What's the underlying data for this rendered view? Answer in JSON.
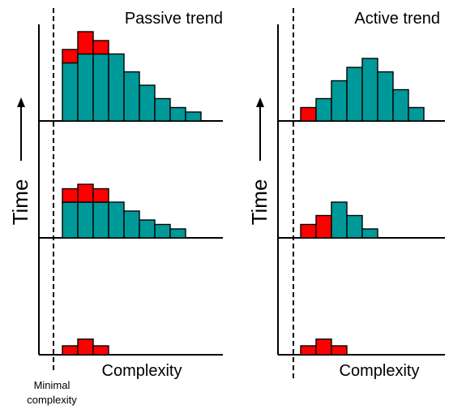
{
  "colors": {
    "teal": "#009999",
    "red": "#ff0000",
    "outline": "#000000"
  },
  "panels": [
    {
      "title": "Passive trend",
      "x_label": "Complexity",
      "y_label": "Time",
      "rows": [
        {
          "teal": [
            6.5,
            7.5,
            7.5,
            7.5,
            5.5,
            4.0,
            2.5,
            1.5,
            1.0
          ],
          "red": [
            1.5,
            2.5,
            1.5,
            0,
            0,
            0,
            0,
            0,
            0
          ]
        },
        {
          "teal": [
            4.0,
            4.0,
            4.0,
            4.0,
            3.0,
            2.0,
            1.5,
            1.0
          ],
          "red": [
            1.5,
            2.0,
            1.5,
            0,
            0,
            0,
            0,
            0
          ]
        },
        {
          "teal": [
            0,
            0,
            0
          ],
          "red": [
            1.0,
            1.75,
            1.0
          ]
        }
      ]
    },
    {
      "title": "Active trend",
      "x_label": "Complexity",
      "y_label": "Time",
      "rows": [
        {
          "teal": [
            0,
            2.5,
            4.5,
            6.0,
            7.0,
            5.5,
            3.5,
            1.5
          ],
          "red": [
            1.5,
            0,
            0,
            0,
            0,
            0,
            0,
            0
          ]
        },
        {
          "teal": [
            0,
            0,
            4.0,
            2.5,
            1.0
          ],
          "red": [
            1.5,
            2.5,
            0,
            0,
            0
          ]
        },
        {
          "teal": [
            0,
            0,
            0
          ],
          "red": [
            1.0,
            1.75,
            1.0
          ]
        }
      ]
    }
  ],
  "annotation": {
    "line1": "Minimal",
    "line2": "complexity"
  }
}
